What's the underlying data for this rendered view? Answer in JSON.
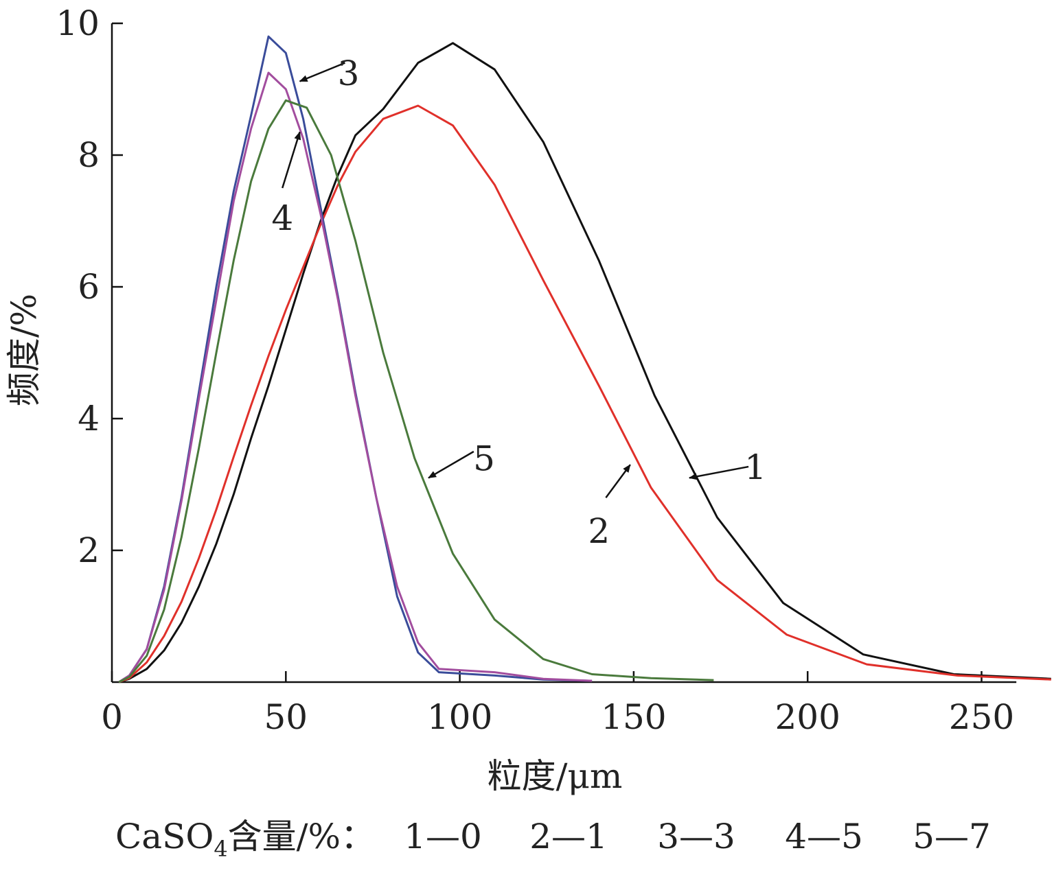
{
  "chart_data": {
    "type": "line",
    "xlabel": "粒度/μm",
    "ylabel": "频度/%",
    "xlim": [
      0,
      270
    ],
    "ylim": [
      0,
      10
    ],
    "x_axis_end": 260,
    "xticks": [
      0,
      50,
      100,
      150,
      200,
      250
    ],
    "yticks": [
      2,
      4,
      6,
      8,
      10
    ],
    "grid": false,
    "legend": {
      "prefix": "CaSO",
      "subscript": "4",
      "suffix": "含量/%：",
      "entries": [
        "1—0",
        "2—1",
        "3—3",
        "4—5",
        "5—7"
      ]
    },
    "series": [
      {
        "id": "1",
        "color": "#111111",
        "points": [
          [
            2,
            0
          ],
          [
            5,
            0.05
          ],
          [
            10,
            0.2
          ],
          [
            15,
            0.48
          ],
          [
            20,
            0.9
          ],
          [
            25,
            1.45
          ],
          [
            30,
            2.1
          ],
          [
            35,
            2.85
          ],
          [
            40,
            3.7
          ],
          [
            45,
            4.5
          ],
          [
            50,
            5.35
          ],
          [
            55,
            6.2
          ],
          [
            60,
            7.0
          ],
          [
            65,
            7.7
          ],
          [
            70,
            8.3
          ],
          [
            78,
            8.7
          ],
          [
            88,
            9.4
          ],
          [
            98,
            9.7
          ],
          [
            110,
            9.3
          ],
          [
            124,
            8.2
          ],
          [
            140,
            6.4
          ],
          [
            156,
            4.35
          ],
          [
            174,
            2.5
          ],
          [
            193,
            1.2
          ],
          [
            216,
            0.42
          ],
          [
            242,
            0.12
          ],
          [
            270,
            0.05
          ]
        ]
      },
      {
        "id": "2",
        "color": "#e0302a",
        "points": [
          [
            2,
            0
          ],
          [
            5,
            0.06
          ],
          [
            10,
            0.3
          ],
          [
            15,
            0.7
          ],
          [
            20,
            1.22
          ],
          [
            25,
            1.88
          ],
          [
            30,
            2.62
          ],
          [
            35,
            3.42
          ],
          [
            40,
            4.2
          ],
          [
            45,
            4.95
          ],
          [
            50,
            5.65
          ],
          [
            55,
            6.3
          ],
          [
            60,
            6.95
          ],
          [
            65,
            7.55
          ],
          [
            70,
            8.05
          ],
          [
            78,
            8.55
          ],
          [
            88,
            8.75
          ],
          [
            98,
            8.45
          ],
          [
            110,
            7.55
          ],
          [
            124,
            6.1
          ],
          [
            140,
            4.5
          ],
          [
            155,
            2.95
          ],
          [
            174,
            1.55
          ],
          [
            194,
            0.72
          ],
          [
            217,
            0.27
          ],
          [
            243,
            0.1
          ],
          [
            270,
            0.04
          ]
        ]
      },
      {
        "id": "3",
        "color": "#3a4c9a",
        "points": [
          [
            2,
            0
          ],
          [
            5,
            0.1
          ],
          [
            10,
            0.5
          ],
          [
            15,
            1.45
          ],
          [
            20,
            2.8
          ],
          [
            25,
            4.4
          ],
          [
            30,
            6.0
          ],
          [
            35,
            7.45
          ],
          [
            40,
            8.6
          ],
          [
            45,
            9.8
          ],
          [
            50,
            9.55
          ],
          [
            55,
            8.55
          ],
          [
            60,
            7.2
          ],
          [
            65,
            5.85
          ],
          [
            70,
            4.4
          ],
          [
            76,
            2.8
          ],
          [
            82,
            1.3
          ],
          [
            88,
            0.45
          ],
          [
            94,
            0.15
          ],
          [
            110,
            0.1
          ],
          [
            124,
            0.04
          ],
          [
            138,
            0.02
          ]
        ]
      },
      {
        "id": "4",
        "color": "#a24d9e",
        "points": [
          [
            2,
            0
          ],
          [
            5,
            0.1
          ],
          [
            10,
            0.5
          ],
          [
            15,
            1.4
          ],
          [
            20,
            2.75
          ],
          [
            25,
            4.3
          ],
          [
            30,
            5.8
          ],
          [
            35,
            7.3
          ],
          [
            40,
            8.4
          ],
          [
            45,
            9.25
          ],
          [
            50,
            9.0
          ],
          [
            55,
            8.25
          ],
          [
            60,
            7.1
          ],
          [
            65,
            5.8
          ],
          [
            70,
            4.35
          ],
          [
            76,
            2.8
          ],
          [
            82,
            1.45
          ],
          [
            88,
            0.6
          ],
          [
            94,
            0.2
          ],
          [
            110,
            0.15
          ],
          [
            124,
            0.05
          ],
          [
            138,
            0.02
          ]
        ]
      },
      {
        "id": "5",
        "color": "#4a7a3c",
        "points": [
          [
            2,
            0
          ],
          [
            5,
            0.08
          ],
          [
            10,
            0.4
          ],
          [
            15,
            1.1
          ],
          [
            20,
            2.2
          ],
          [
            25,
            3.55
          ],
          [
            30,
            5.0
          ],
          [
            35,
            6.4
          ],
          [
            40,
            7.6
          ],
          [
            45,
            8.4
          ],
          [
            50,
            8.83
          ],
          [
            56,
            8.72
          ],
          [
            63,
            8.0
          ],
          [
            70,
            6.7
          ],
          [
            78,
            5.0
          ],
          [
            87,
            3.4
          ],
          [
            98,
            1.95
          ],
          [
            110,
            0.95
          ],
          [
            124,
            0.35
          ],
          [
            138,
            0.12
          ],
          [
            155,
            0.06
          ],
          [
            173,
            0.03
          ]
        ]
      }
    ],
    "annotations": [
      {
        "label": "1",
        "text_at": [
          185,
          3.27
        ],
        "arrow_from": [
          183,
          3.27
        ],
        "arrow_to": [
          166,
          3.1
        ]
      },
      {
        "label": "2",
        "text_at": [
          140,
          2.3
        ],
        "arrow_from": [
          142,
          2.8
        ],
        "arrow_to": [
          149,
          3.3
        ]
      },
      {
        "label": "3",
        "text_at": [
          68,
          9.25
        ],
        "arrow_from": [
          67,
          9.4
        ],
        "arrow_to": [
          54,
          9.12
        ]
      },
      {
        "label": "4",
        "text_at": [
          49,
          7.05
        ],
        "arrow_from": [
          49,
          7.5
        ],
        "arrow_to": [
          54,
          8.35
        ]
      },
      {
        "label": "5",
        "text_at": [
          107,
          3.4
        ],
        "arrow_from": [
          104,
          3.5
        ],
        "arrow_to": [
          91,
          3.1
        ]
      }
    ]
  }
}
